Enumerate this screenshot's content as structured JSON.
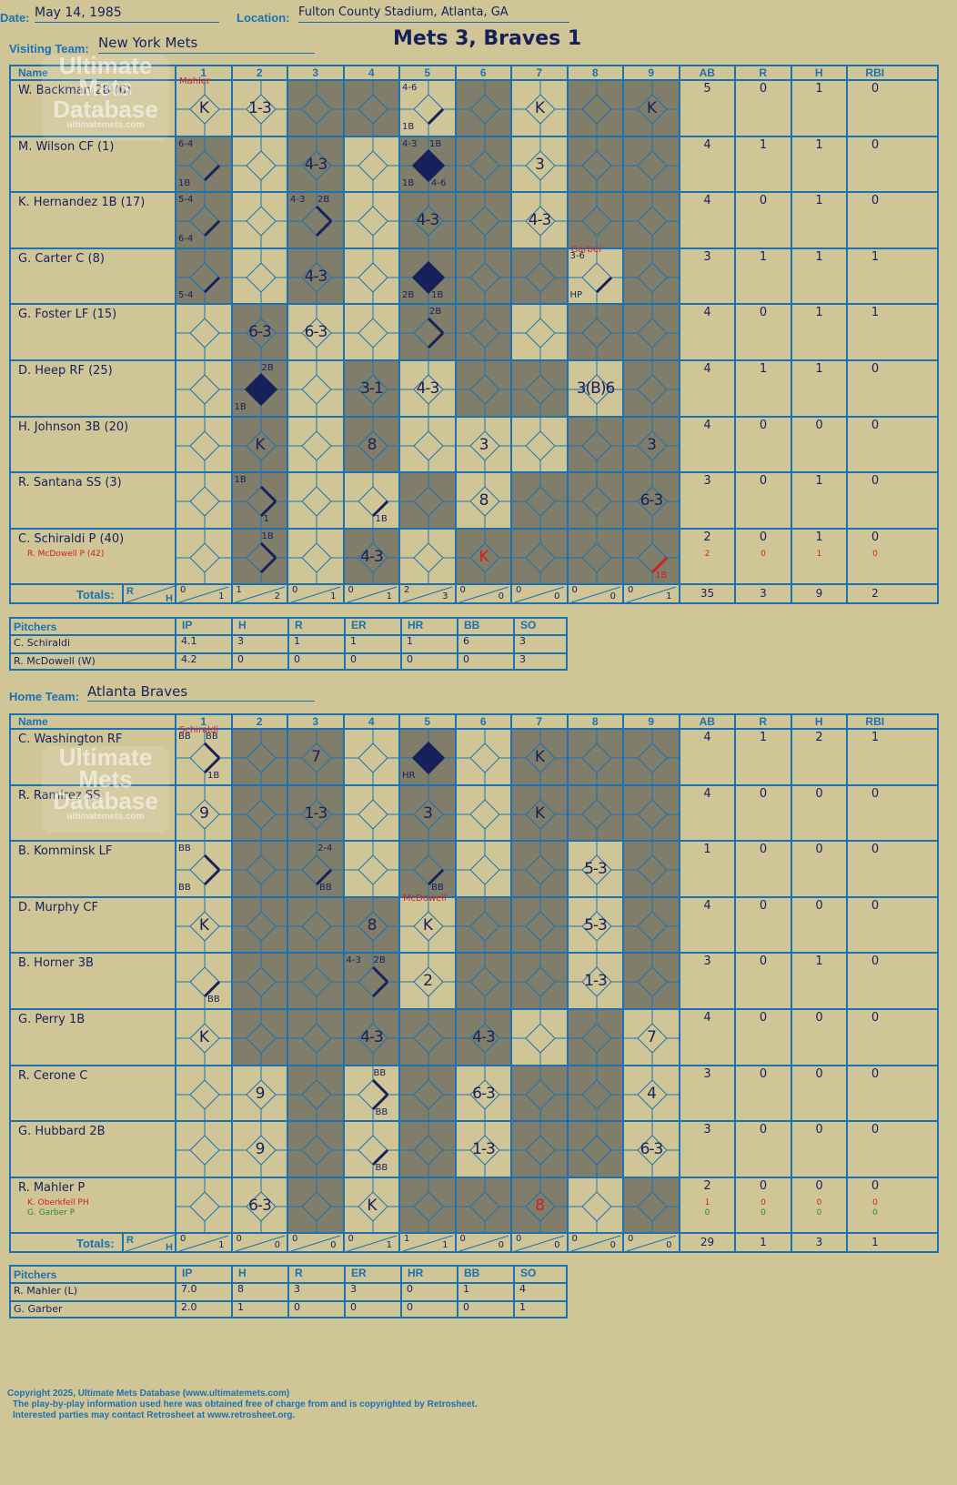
{
  "header": {
    "date_label": "Date:",
    "date": "May 14, 1985",
    "location_label": "Location:",
    "location": "Fulton County Stadium, Atlanta, GA",
    "title": "Mets 3, Braves 1"
  },
  "watermark": {
    "line1": "Ultimate",
    "line2": "Mets",
    "line3": "Database",
    "url": "ultimatemets.com"
  },
  "columns": {
    "name": "Name",
    "innings": [
      "1",
      "2",
      "3",
      "4",
      "5",
      "6",
      "7",
      "8",
      "9"
    ],
    "stats": [
      "AB",
      "R",
      "H",
      "RBI"
    ]
  },
  "visitor": {
    "team_label": "Visiting Team:",
    "team": "New York Mets",
    "players": [
      {
        "name": "W. Backman 2B (6)",
        "ab": "5",
        "r": "0",
        "h": "1",
        "rbi": "0"
      },
      {
        "name": "M. Wilson CF (1)",
        "ab": "4",
        "r": "1",
        "h": "1",
        "rbi": "0"
      },
      {
        "name": "K. Hernandez 1B (17)",
        "ab": "4",
        "r": "0",
        "h": "1",
        "rbi": "0"
      },
      {
        "name": "G. Carter C (8)",
        "ab": "3",
        "r": "1",
        "h": "1",
        "rbi": "1"
      },
      {
        "name": "G. Foster LF (15)",
        "ab": "4",
        "r": "0",
        "h": "1",
        "rbi": "1"
      },
      {
        "name": "D. Heep RF (25)",
        "ab": "4",
        "r": "1",
        "h": "1",
        "rbi": "0"
      },
      {
        "name": "H. Johnson 3B (20)",
        "ab": "4",
        "r": "0",
        "h": "0",
        "rbi": "0"
      },
      {
        "name": "R. Santana SS (3)",
        "ab": "3",
        "r": "0",
        "h": "1",
        "rbi": "0"
      },
      {
        "name": "C. Schiraldi P (40)",
        "ab": "2",
        "r": "0",
        "h": "1",
        "rbi": "0"
      }
    ],
    "subs": [
      {
        "row": 8,
        "name": "R. McDowell P (42)",
        "ab": "2",
        "r": "0",
        "h": "1",
        "rbi": "0",
        "color": "#d41f1f"
      }
    ],
    "totals_label": "Totals:",
    "totals": [
      [
        "0",
        "1"
      ],
      [
        "1",
        "2"
      ],
      [
        "0",
        "1"
      ],
      [
        "0",
        "1"
      ],
      [
        "2",
        "3"
      ],
      [
        "0",
        "0"
      ],
      [
        "0",
        "0"
      ],
      [
        "0",
        "0"
      ],
      [
        "0",
        "1"
      ]
    ],
    "totals_stats": [
      "35",
      "3",
      "9",
      "2"
    ],
    "pitchers_label": "Pitchers",
    "pitcher_cols": [
      "IP",
      "H",
      "R",
      "ER",
      "HR",
      "BB",
      "SO"
    ],
    "pitchers": [
      {
        "name": "C. Schiraldi",
        "vals": [
          "4.1",
          "3",
          "1",
          "1",
          "1",
          "6",
          "3"
        ]
      },
      {
        "name": "R. McDowell (W)",
        "vals": [
          "4.2",
          "0",
          "0",
          "0",
          "0",
          "0",
          "3"
        ]
      }
    ]
  },
  "home": {
    "team_label": "Home Team:",
    "team": "Atlanta Braves",
    "players": [
      {
        "name": "C. Washington RF",
        "ab": "4",
        "r": "1",
        "h": "2",
        "rbi": "1"
      },
      {
        "name": "R. Ramirez SS",
        "ab": "4",
        "r": "0",
        "h": "0",
        "rbi": "0"
      },
      {
        "name": "B. Komminsk LF",
        "ab": "1",
        "r": "0",
        "h": "0",
        "rbi": "0"
      },
      {
        "name": "D. Murphy CF",
        "ab": "4",
        "r": "0",
        "h": "0",
        "rbi": "0"
      },
      {
        "name": "B. Horner 3B",
        "ab": "3",
        "r": "0",
        "h": "1",
        "rbi": "0"
      },
      {
        "name": "G. Perry 1B",
        "ab": "4",
        "r": "0",
        "h": "0",
        "rbi": "0"
      },
      {
        "name": "R. Cerone C",
        "ab": "3",
        "r": "0",
        "h": "0",
        "rbi": "0"
      },
      {
        "name": "G. Hubbard 2B",
        "ab": "3",
        "r": "0",
        "h": "0",
        "rbi": "0"
      },
      {
        "name": "R. Mahler P",
        "ab": "2",
        "r": "0",
        "h": "0",
        "rbi": "0"
      }
    ],
    "subs": [
      {
        "row": 8,
        "name": "K. Oberkfell PH",
        "ab": "1",
        "r": "0",
        "h": "0",
        "rbi": "0",
        "color": "#d41f1f"
      },
      {
        "row": 8,
        "name": "G. Garber P",
        "ab": "0",
        "r": "0",
        "h": "0",
        "rbi": "0",
        "color": "#2f8a2f"
      }
    ],
    "totals_label": "Totals:",
    "totals": [
      [
        "0",
        "1"
      ],
      [
        "0",
        "0"
      ],
      [
        "0",
        "0"
      ],
      [
        "0",
        "1"
      ],
      [
        "1",
        "1"
      ],
      [
        "0",
        "0"
      ],
      [
        "0",
        "0"
      ],
      [
        "0",
        "0"
      ],
      [
        "0",
        "0"
      ]
    ],
    "totals_stats": [
      "29",
      "1",
      "3",
      "1"
    ],
    "pitchers_label": "Pitchers",
    "pitcher_cols": [
      "IP",
      "H",
      "R",
      "ER",
      "HR",
      "BB",
      "SO"
    ],
    "pitchers": [
      {
        "name": "R. Mahler (L)",
        "vals": [
          "7.0",
          "8",
          "3",
          "3",
          "0",
          "1",
          "4"
        ]
      },
      {
        "name": "G. Garber",
        "vals": [
          "2.0",
          "1",
          "0",
          "0",
          "0",
          "0",
          "1"
        ]
      }
    ]
  },
  "scorebook": {
    "visitor": [
      [
        {
          "c": 0,
          "t": "K",
          "n": "Mahler"
        },
        {
          "c": 1,
          "t": "1-3"
        },
        {
          "c": 4,
          "n1": "4-6",
          "seg": [
            1
          ],
          "n2": "1B"
        },
        {
          "c": 6,
          "t": "K"
        },
        {
          "c": 8,
          "t": "K"
        }
      ],
      [
        {
          "c": 0,
          "n1": "6-4",
          "seg": [
            1
          ],
          "n2": "1B"
        },
        {
          "c": 2,
          "t": "4-3"
        },
        {
          "c": 4,
          "fill": true,
          "n1": "4-3",
          "n1b": "1B",
          "n2": "1B",
          "n2b": "4-6"
        },
        {
          "c": 6,
          "t": "3"
        }
      ],
      [
        {
          "c": 0,
          "n1": "5-4",
          "seg": [
            1
          ],
          "n2": "6-4"
        },
        {
          "c": 2,
          "seg": [
            1,
            2
          ],
          "n1": "4-3",
          "n1b": "2B"
        },
        {
          "c": 4,
          "t": "4-3"
        },
        {
          "c": 6,
          "t": "4-3"
        }
      ],
      [
        {
          "c": 0,
          "seg": [
            1
          ],
          "n2": "5-4"
        },
        {
          "c": 2,
          "t": "4-3"
        },
        {
          "c": 4,
          "fill": true,
          "n2": "2B",
          "n2b": "1B"
        },
        {
          "c": 7,
          "n1": "3-6",
          "seg": [
            1
          ],
          "n2": "HP",
          "n": "Garber"
        }
      ],
      [
        {
          "c": 1,
          "t": "6-3"
        },
        {
          "c": 2,
          "t": "6-3"
        },
        {
          "c": 4,
          "seg": [
            1,
            2
          ],
          "n1b": "2B"
        }
      ],
      [
        {
          "c": 1,
          "fill": true,
          "n1b": "2B",
          "n2": "1B"
        },
        {
          "c": 3,
          "t": "3-1"
        },
        {
          "c": 4,
          "t": "4-3"
        },
        {
          "c": 7,
          "t": "3(B)6"
        }
      ],
      [
        {
          "c": 1,
          "t": "K"
        },
        {
          "c": 3,
          "t": "8"
        },
        {
          "c": 5,
          "t": "3"
        },
        {
          "c": 8,
          "t": "3"
        }
      ],
      [
        {
          "c": 1,
          "seg": [
            1,
            2
          ],
          "n1": "1B",
          "n2b": "1"
        },
        {
          "c": 3,
          "seg": [
            1
          ],
          "n2b": "1B"
        },
        {
          "c": 5,
          "t": "8"
        },
        {
          "c": 8,
          "t": "6-3"
        }
      ],
      [
        {
          "c": 1,
          "seg": [
            1,
            2
          ],
          "n1b": "1B"
        },
        {
          "c": 3,
          "t": "4-3"
        },
        {
          "c": 5,
          "t": "K",
          "red": true
        },
        {
          "c": 8,
          "segred": true,
          "n2b": "1B"
        }
      ]
    ],
    "home": [
      [
        {
          "c": 0,
          "seg": [
            1,
            2
          ],
          "n1": "BB",
          "n1b": "BB",
          "n2b": "1B",
          "n": "Schiraldi"
        },
        {
          "c": 2,
          "t": "7"
        },
        {
          "c": 4,
          "fill": true,
          "n2": "HR"
        },
        {
          "c": 6,
          "t": "K"
        }
      ],
      [
        {
          "c": 0,
          "t": "9"
        },
        {
          "c": 2,
          "t": "1-3"
        },
        {
          "c": 4,
          "t": "3"
        },
        {
          "c": 6,
          "t": "K"
        }
      ],
      [
        {
          "c": 0,
          "seg": [
            1,
            2
          ],
          "n1": "BB",
          "n2": "BB"
        },
        {
          "c": 2,
          "seg": [
            1
          ],
          "n1b": "2-4",
          "n2b": "BB"
        },
        {
          "c": 4,
          "seg": [
            1
          ],
          "n2b": "BB"
        },
        {
          "c": 7,
          "t": "5-3"
        }
      ],
      [
        {
          "c": 0,
          "t": "K"
        },
        {
          "c": 3,
          "t": "8"
        },
        {
          "c": 4,
          "t": "K",
          "n": "McDowell"
        },
        {
          "c": 7,
          "t": "5-3"
        }
      ],
      [
        {
          "c": 0,
          "seg": [
            1
          ],
          "n2b": "BB"
        },
        {
          "c": 3,
          "seg": [
            1,
            2
          ],
          "n1": "4-3",
          "n1b": "2B"
        },
        {
          "c": 4,
          "t": "2"
        },
        {
          "c": 7,
          "t": "1-3"
        }
      ],
      [
        {
          "c": 0,
          "t": "K"
        },
        {
          "c": 3,
          "t": "4-3"
        },
        {
          "c": 5,
          "t": "4-3"
        },
        {
          "c": 8,
          "t": "7"
        }
      ],
      [
        {
          "c": 1,
          "t": "9"
        },
        {
          "c": 3,
          "seg": [
            1,
            2
          ],
          "n1b": "BB",
          "n2b": "BB"
        },
        {
          "c": 5,
          "t": "6-3"
        },
        {
          "c": 8,
          "t": "4"
        }
      ],
      [
        {
          "c": 1,
          "t": "9"
        },
        {
          "c": 3,
          "seg": [
            1
          ],
          "n2b": "BB"
        },
        {
          "c": 5,
          "t": "1-3"
        },
        {
          "c": 8,
          "t": "6-3"
        }
      ],
      [
        {
          "c": 1,
          "t": "6-3"
        },
        {
          "c": 3,
          "t": "K"
        },
        {
          "c": 6,
          "t": "8",
          "red": true
        }
      ]
    ]
  },
  "darkcells": {
    "visitor": [
      "0011010110",
      "1010110110",
      "1010110110",
      "1010111010",
      "0100110110",
      "0101011010",
      "0101000110",
      "0100101110",
      "0101011110"
    ],
    "home": [
      "0110101110",
      "0110101110",
      "0110101010",
      "0111011011",
      "0111011010",
      "0111110101",
      "0010101101",
      "0010101101",
      "0010111010"
    ]
  },
  "footer": {
    "copyright": "Copyright 2025, Ultimate Mets Database (www.ultimatemets.com)",
    "line2": "The play-by-play information used here was obtained free of charge from and is copyrighted by Retrosheet.",
    "line3": "Interested parties may contact Retrosheet at www.retrosheet.org."
  }
}
